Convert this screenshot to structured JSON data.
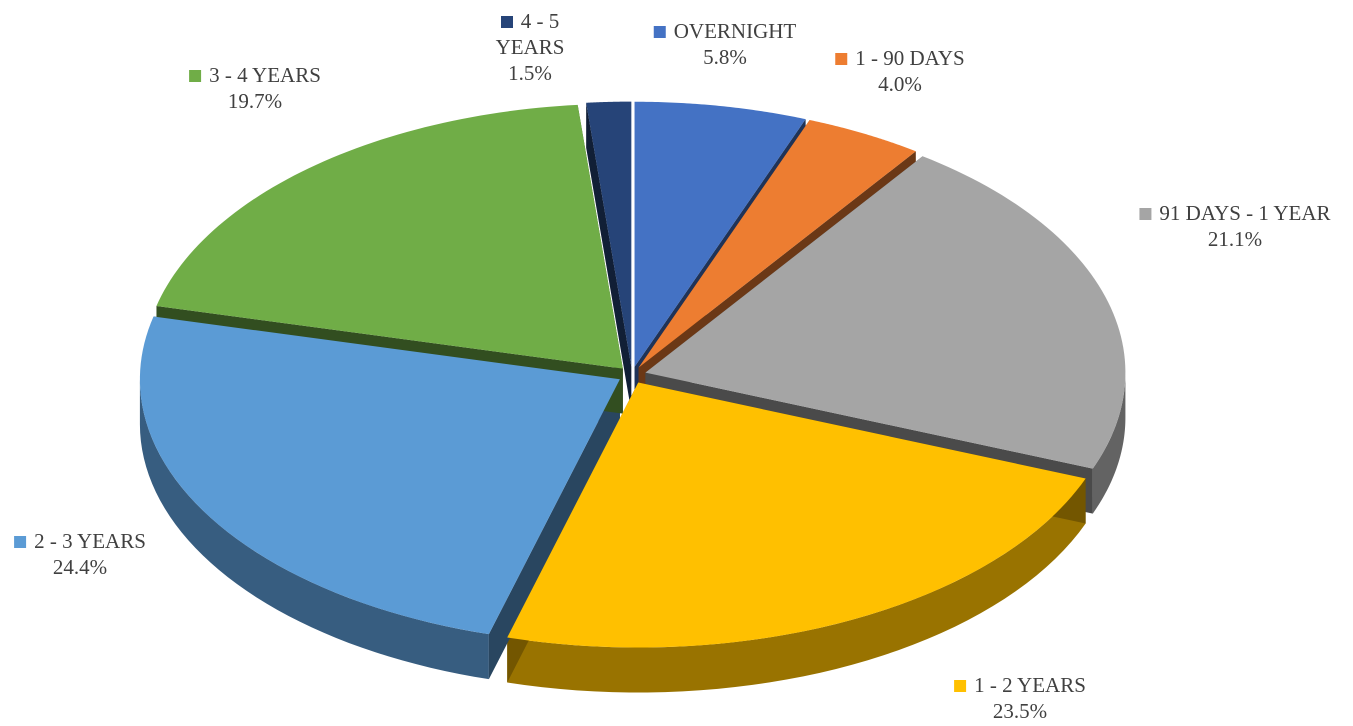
{
  "chart_data": {
    "type": "pie3d",
    "categories": [
      "OVERNIGHT",
      "1 - 90 DAYS",
      "91 DAYS - 1 YEAR",
      "1 - 2 YEARS",
      "2 - 3 YEARS",
      "3 - 4 YEARS",
      "4 - 5 YEARS"
    ],
    "values": [
      5.8,
      4.0,
      21.1,
      23.5,
      24.4,
      19.7,
      1.5
    ],
    "value_labels": [
      "5.8%",
      "4.0%",
      "21.1%",
      "23.5%",
      "24.4%",
      "19.7%",
      "1.5%"
    ],
    "colors": [
      "#4472c4",
      "#ed7d31",
      "#a5a5a5",
      "#ffc000",
      "#5b9bd5",
      "#70ad47",
      "#264478"
    ]
  }
}
